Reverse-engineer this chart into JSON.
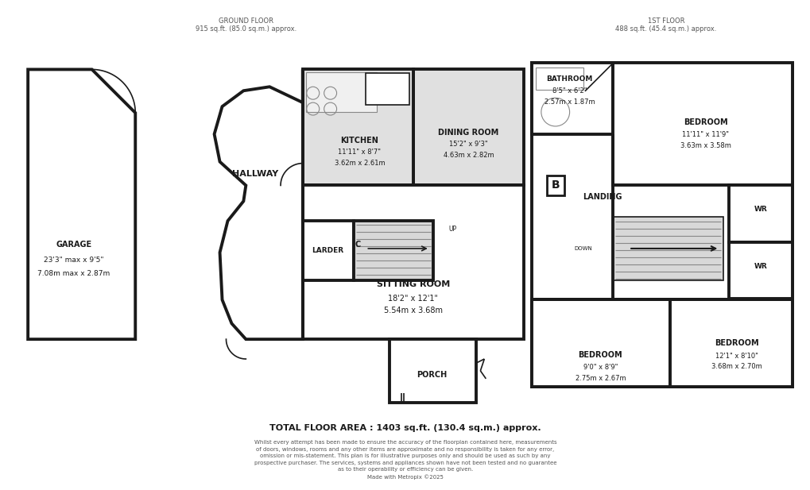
{
  "bg_color": "#ffffff",
  "wall_color": "#1a1a1a",
  "wall_lw": 2.8,
  "thin_lw": 1.2,
  "fill_light": "#e0e0e0",
  "fill_stair": "#d8d8d8",
  "ground_floor_label": "GROUND FLOOR\n915 sq.ft. (85.0 sq.m.) approx.",
  "first_floor_label": "1ST FLOOR\n488 sq.ft. (45.4 sq.m.) approx.",
  "total_area": "TOTAL FLOOR AREA : 1403 sq.ft. (130.4 sq.m.) approx.",
  "disclaimer": "Whilst every attempt has been made to ensure the accuracy of the floorplan contained here, measurements\nof doors, windows, rooms and any other items are approximate and no responsibility is taken for any error,\nomission or mis-statement. This plan is for illustrative purposes only and should be used as such by any\nprospective purchaser. The services, systems and appliances shown have not been tested and no guarantee\nas to their operability or efficiency can be given.\nMade with Metropix ©2025",
  "rooms": {
    "garage": {
      "label": "GARAGE",
      "dims": "23'3\" max x 9'5\"\n7.08m max x 2.87m"
    },
    "hallway": {
      "label": "HALLWAY",
      "dims": ""
    },
    "kitchen": {
      "label": "KITCHEN",
      "dims": "11'11\" x 8'7\"\n3.62m x 2.61m"
    },
    "dining": {
      "label": "DINING ROOM",
      "dims": "15'2\" x 9'3\"\n4.63m x 2.82m"
    },
    "larder": {
      "label": "LARDER",
      "dims": ""
    },
    "sitting": {
      "label": "SITTING ROOM",
      "dims": "18'2\" x 12'1\"\n5.54m x 3.68m"
    },
    "porch": {
      "label": "PORCH",
      "dims": ""
    },
    "bathroom": {
      "label": "BATHROOM",
      "dims": "8'5\" x 6'2\"\n2.57m x 1.87m"
    },
    "landing": {
      "label": "LANDING",
      "dims": ""
    },
    "bed1": {
      "label": "BEDROOM",
      "dims": "11'11\" x 11'9\"\n3.63m x 3.58m"
    },
    "bed2": {
      "label": "BEDROOM",
      "dims": "9'0\" x 8'9\"\n2.75m x 2.67m"
    },
    "bed3": {
      "label": "BEDROOM",
      "dims": "12'1\" x 8'10\"\n3.68m x 2.70m"
    },
    "wr1": {
      "label": "WR",
      "dims": ""
    },
    "wr2": {
      "label": "WR",
      "dims": ""
    }
  }
}
